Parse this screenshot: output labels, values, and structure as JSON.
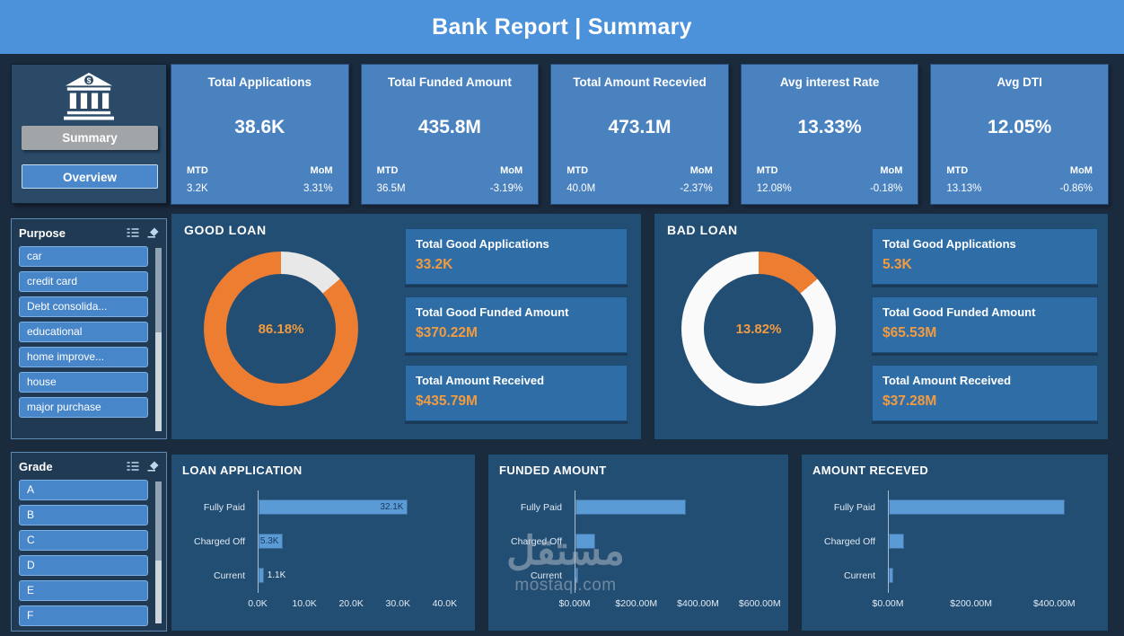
{
  "header": {
    "title": "Bank Report | Summary"
  },
  "nav": {
    "summary_label": "Summary",
    "overview_label": "Overview"
  },
  "slicers": {
    "purpose": {
      "title": "Purpose",
      "items": [
        "car",
        "credit card",
        "Debt consolida...",
        "educational",
        "home improve...",
        "house",
        "major purchase"
      ]
    },
    "grade": {
      "title": "Grade",
      "items": [
        "A",
        "B",
        "C",
        "D",
        "E",
        "F"
      ]
    }
  },
  "kpis": [
    {
      "title": "Total Applications",
      "value": "38.6K",
      "mtd_label": "MTD",
      "mtd_value": "3.2K",
      "mom_label": "MoM",
      "mom_value": "3.31%"
    },
    {
      "title": "Total Funded Amount",
      "value": "435.8M",
      "mtd_label": "MTD",
      "mtd_value": "36.5M",
      "mom_label": "MoM",
      "mom_value": "-3.19%"
    },
    {
      "title": "Total Amount Recevied",
      "value": "473.1M",
      "mtd_label": "MTD",
      "mtd_value": "40.0M",
      "mom_label": "MoM",
      "mom_value": "-2.37%"
    },
    {
      "title": "Avg interest Rate",
      "value": "13.33%",
      "mtd_label": "MTD",
      "mtd_value": "12.08%",
      "mom_label": "MoM",
      "mom_value": "-0.18%"
    },
    {
      "title": "Avg DTI",
      "value": "12.05%",
      "mtd_label": "MTD",
      "mtd_value": "13.13%",
      "mom_label": "MoM",
      "mom_value": "-0.86%"
    }
  ],
  "good_loan": {
    "stats": [
      {
        "label": "Total Good Applications",
        "value": "33.2K"
      },
      {
        "label": "Total Good Funded Amount",
        "value": "$370.22M"
      },
      {
        "label": "Total Amount Received",
        "value": "$435.79M"
      }
    ]
  },
  "bad_loan": {
    "stats": [
      {
        "label": "Total Good Applications",
        "value": "5.3K"
      },
      {
        "label": "Total Good Funded Amount",
        "value": "$65.53M"
      },
      {
        "label": "Total Amount Received",
        "value": "$37.28M"
      }
    ]
  },
  "chart_data": {
    "good_donut": {
      "type": "pie",
      "title": "GOOD LOAN",
      "labels": [
        "Good Loan",
        "Bad Loan"
      ],
      "values": [
        86.18,
        13.82
      ],
      "center_label": "86.18%",
      "first_pct": 13.82,
      "first_color": "#E8E8E8",
      "rest_color": "#ED7D31"
    },
    "bad_donut": {
      "type": "pie",
      "title": "BAD LOAN",
      "labels": [
        "Bad Loan",
        "Good Loan"
      ],
      "values": [
        13.82,
        86.18
      ],
      "center_label": "13.82%",
      "first_pct": 13.82,
      "first_color": "#ED7D31",
      "rest_color": "#FAFAFA"
    },
    "bars": [
      {
        "type": "bar",
        "title": "LOAN APPLICATION",
        "orientation": "horizontal",
        "categories": [
          "Fully Paid",
          "Charged Off",
          "Current"
        ],
        "values": [
          32.1,
          5.3,
          1.1
        ],
        "value_labels": [
          "32.1K",
          "5.3K",
          "1.1K"
        ],
        "unit": "K",
        "xlim": [
          0,
          40
        ],
        "scale_max": 43,
        "ticks": [
          {
            "label": "0.0K",
            "value": 0
          },
          {
            "label": "10.0K",
            "value": 10
          },
          {
            "label": "20.0K",
            "value": 20
          },
          {
            "label": "30.0K",
            "value": 30
          },
          {
            "label": "40.0K",
            "value": 40
          }
        ]
      },
      {
        "type": "bar",
        "title": "FUNDED AMOUNT",
        "orientation": "horizontal",
        "categories": [
          "Fully Paid",
          "Charged Off",
          "Current"
        ],
        "values": [
          360,
          65.5,
          10
        ],
        "unit": "$M",
        "xlim": [
          0,
          600
        ],
        "scale_max": 640,
        "ticks": [
          {
            "label": "$0.00M",
            "value": 0
          },
          {
            "label": "$200.00M",
            "value": 200
          },
          {
            "label": "$400.00M",
            "value": 400
          },
          {
            "label": "$600.00M",
            "value": 600
          }
        ]
      },
      {
        "type": "bar",
        "title": "AMOUNT RECEVED",
        "orientation": "horizontal",
        "categories": [
          "Fully Paid",
          "Charged Off",
          "Current"
        ],
        "values": [
          425,
          37,
          11
        ],
        "unit": "$M",
        "xlim": [
          0,
          400
        ],
        "scale_max": 490,
        "ticks": [
          {
            "label": "$0.00M",
            "value": 0
          },
          {
            "label": "$200.00M",
            "value": 200
          },
          {
            "label": "$400.00M",
            "value": 400
          }
        ]
      }
    ]
  },
  "watermark": {
    "line1": "مستقل",
    "line2": "mostaql.com"
  },
  "colors": {
    "header_blue": "#4C92DA",
    "kpi_blue": "#4A82C0",
    "panel_blue": "#234E74",
    "stat_blue": "#2E6DA6",
    "accent_orange": "#ED7D31",
    "value_orange": "#F29B40",
    "bar_blue": "#5B9BD5",
    "background": "#1B2B3E",
    "slicer_item_blue": "#4886CA"
  }
}
